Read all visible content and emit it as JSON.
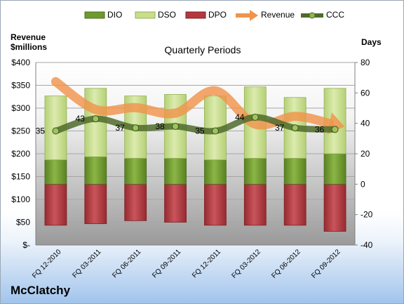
{
  "company": "McClatchy",
  "chart_data": {
    "type": "bar",
    "title": "Quarterly Periods",
    "y_left_label": [
      "Revenue",
      "$millions"
    ],
    "y_right_label": "Days",
    "y_left_ticks": [
      "$-",
      "$50",
      "$100",
      "$150",
      "$200",
      "$250",
      "$300",
      "$350",
      "$400"
    ],
    "y_right_ticks": [
      "-40",
      "-20",
      "0",
      "20",
      "40",
      "60",
      "80"
    ],
    "ylim_left": [
      0,
      400
    ],
    "ylim_right": [
      -40,
      80
    ],
    "categories": [
      "FQ 12-2010",
      "FQ 03-2011",
      "FQ 06-2011",
      "FQ 09-2011",
      "FQ 12-2011",
      "FQ 03-2012",
      "FQ 06-2012",
      "FQ 09-2012"
    ],
    "legend": [
      "DIO",
      "DSO",
      "DPO",
      "Revenue",
      "CCC"
    ],
    "series": [
      {
        "name": "DIO",
        "axis": "right",
        "values": [
          16,
          18,
          17,
          17,
          16,
          17,
          17,
          20
        ],
        "color": "#6f9a2e"
      },
      {
        "name": "DSO",
        "axis": "right",
        "values": [
          42,
          45,
          41,
          42,
          42,
          47,
          40,
          43
        ],
        "color": "#c8de8a"
      },
      {
        "name": "DPO",
        "axis": "right",
        "values": [
          -27,
          -26,
          -24,
          -25,
          -27,
          -27,
          -27,
          -31
        ],
        "color": "#b5373d"
      },
      {
        "name": "Revenue",
        "axis": "left",
        "values": [
          358,
          297,
          301,
          289,
          338,
          265,
          282,
          264
        ],
        "color": "#f0944c"
      },
      {
        "name": "CCC",
        "axis": "right",
        "values": [
          35,
          43,
          37,
          38,
          35,
          44,
          37,
          36
        ],
        "color": "#4f6b2c"
      }
    ],
    "data_labels": [
      "35",
      "43",
      "37",
      "38",
      "35",
      "44",
      "37",
      "36"
    ],
    "grid": true,
    "legend_position": "top"
  }
}
